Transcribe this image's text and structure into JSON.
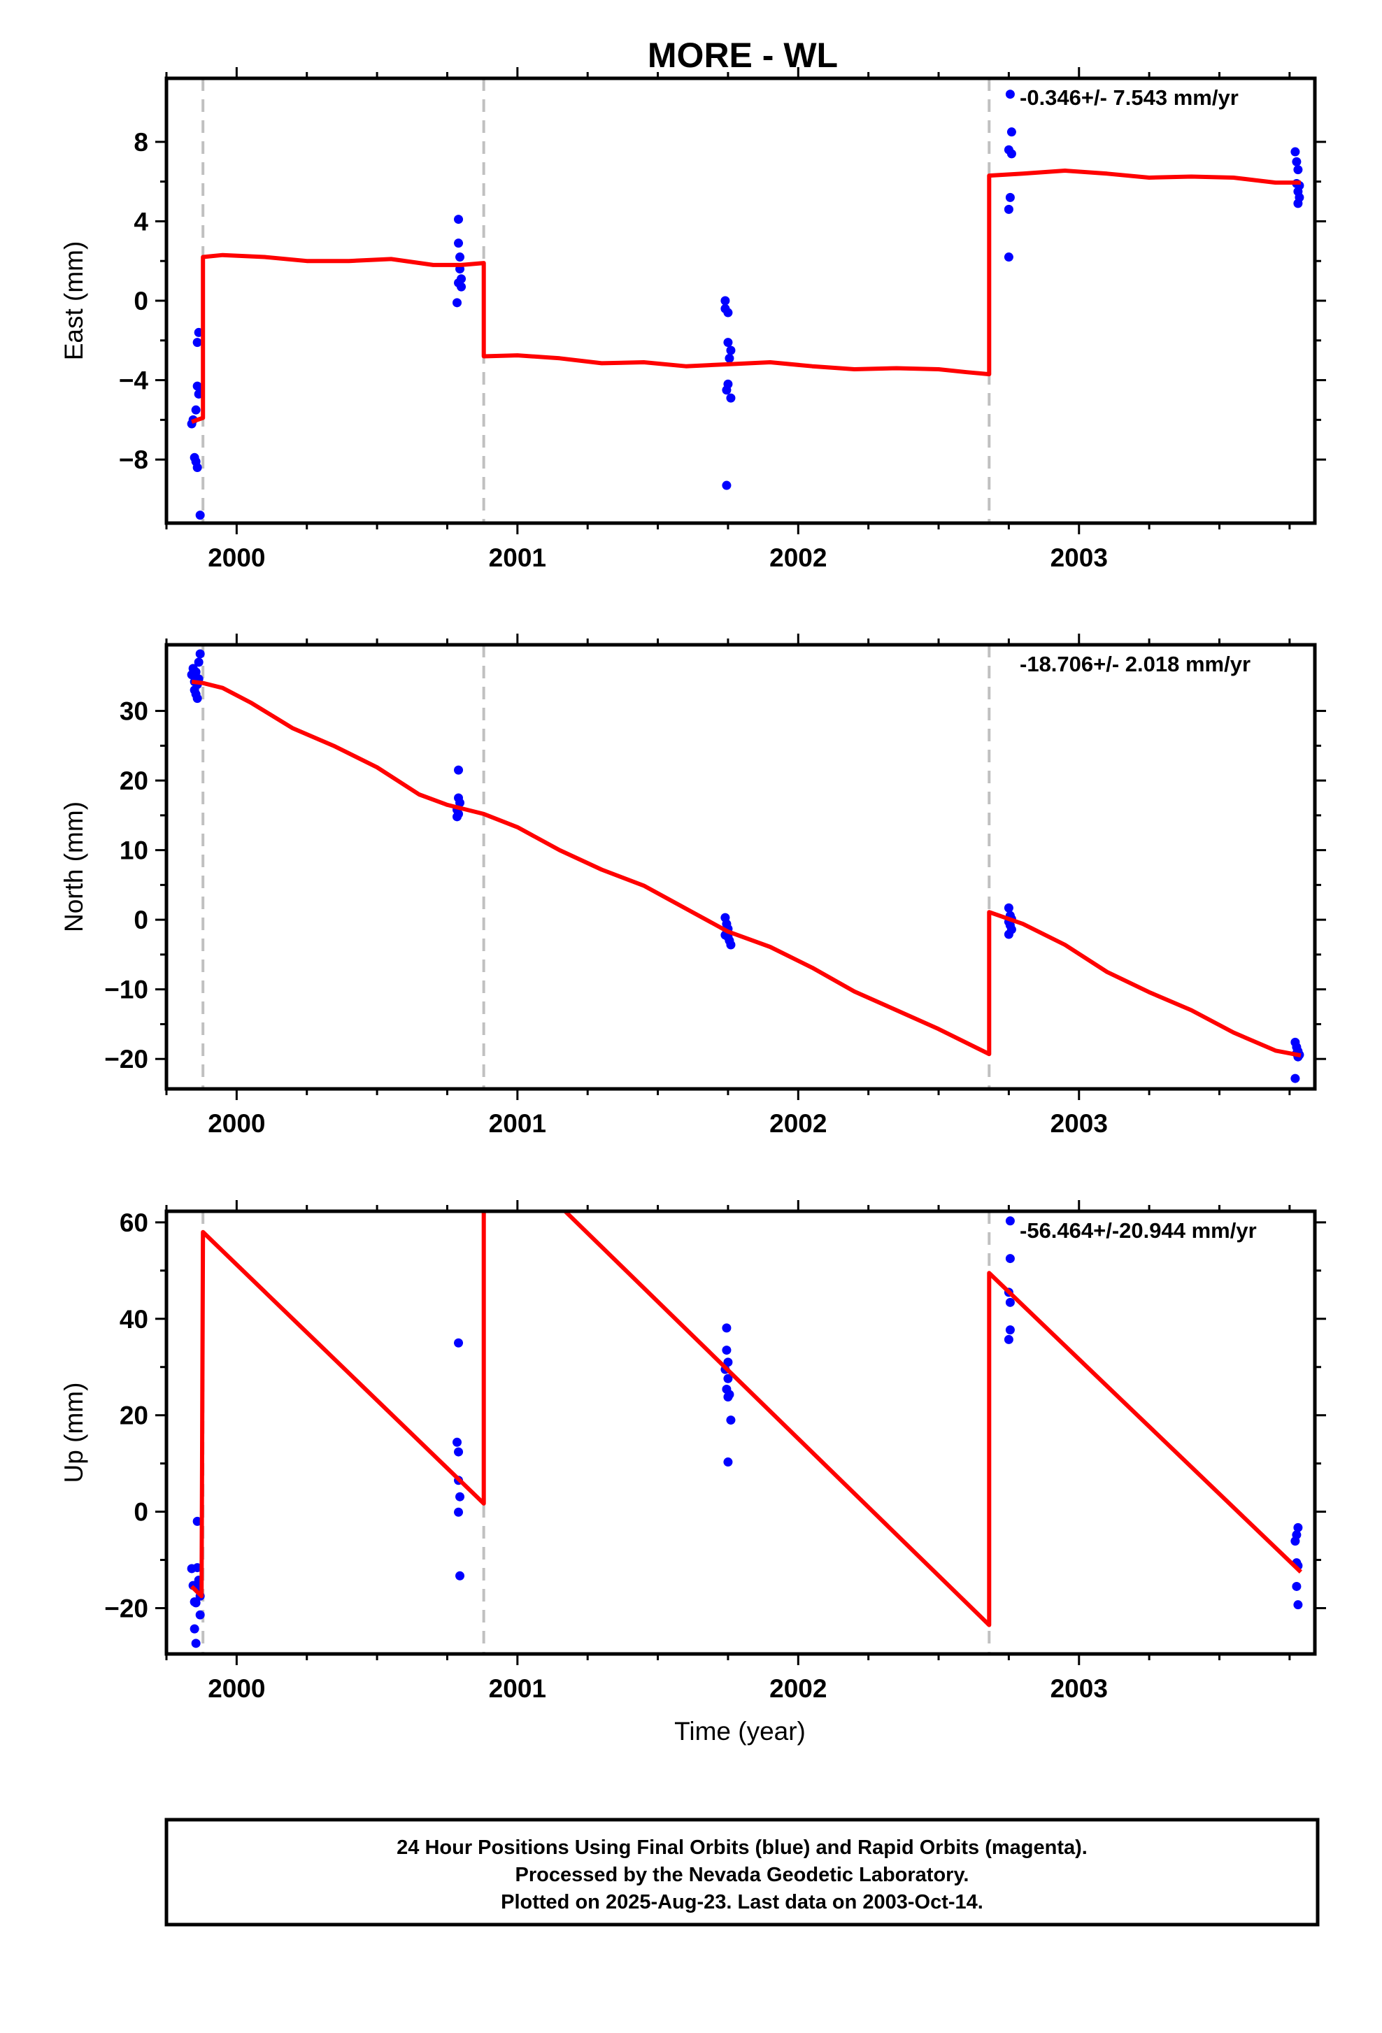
{
  "title": "MORE - WL",
  "colors": {
    "data_points": "#0000ff",
    "model_line": "#ff0000",
    "step_lines": "#c0c0c0",
    "frame": "#000000"
  },
  "xlabel": "Time (year)",
  "x_tick_labels": [
    "2000",
    "2001",
    "2002",
    "2003"
  ],
  "footer": {
    "line1": "24 Hour Positions Using Final Orbits (blue) and Rapid Orbits (magenta).",
    "line2": "Processed by the Nevada Geodetic Laboratory.",
    "line3": "Plotted on 2025-Aug-23. Last data on 2003-Oct-14."
  },
  "chart_data": [
    {
      "type": "scatter",
      "component": "east",
      "ylabel": "East (mm)",
      "rate_label": "-0.346+/- 7.543 mm/yr",
      "xlim": [
        1999.75,
        2003.84
      ],
      "ylim": [
        -11.2,
        11.2
      ],
      "grid": false,
      "y_ticks": [
        -8,
        -4,
        0,
        4,
        8
      ],
      "y_tick_labels": [
        "−8",
        "−4",
        "0",
        "4",
        "8"
      ],
      "x_ticks": [
        2000,
        2001,
        2002,
        2003
      ],
      "step_epochs": [
        1999.88,
        2000.88,
        2002.68
      ],
      "points": [
        [
          1999.84,
          -6.2
        ],
        [
          1999.845,
          -6.0
        ],
        [
          1999.85,
          -7.9
        ],
        [
          1999.855,
          -8.1
        ],
        [
          1999.86,
          -8.4
        ],
        [
          1999.855,
          -5.5
        ],
        [
          1999.86,
          -4.3
        ],
        [
          1999.865,
          -4.7
        ],
        [
          1999.87,
          -4.4
        ],
        [
          1999.86,
          -2.1
        ],
        [
          1999.865,
          -1.6
        ],
        [
          1999.87,
          -10.8
        ],
        [
          2000.79,
          4.1
        ],
        [
          2000.79,
          2.9
        ],
        [
          2000.795,
          2.2
        ],
        [
          2000.795,
          1.6
        ],
        [
          2000.8,
          1.1
        ],
        [
          2000.79,
          0.9
        ],
        [
          2000.8,
          0.7
        ],
        [
          2000.785,
          -0.1
        ],
        [
          2001.74,
          0.0
        ],
        [
          2001.74,
          -0.4
        ],
        [
          2001.75,
          -0.6
        ],
        [
          2001.75,
          -2.1
        ],
        [
          2001.76,
          -2.5
        ],
        [
          2001.755,
          -2.9
        ],
        [
          2001.75,
          -4.2
        ],
        [
          2001.745,
          -4.5
        ],
        [
          2001.76,
          -4.9
        ],
        [
          2001.745,
          -9.3
        ],
        [
          2002.755,
          10.4
        ],
        [
          2002.76,
          8.5
        ],
        [
          2002.75,
          7.6
        ],
        [
          2002.76,
          7.4
        ],
        [
          2002.755,
          5.2
        ],
        [
          2002.75,
          4.6
        ],
        [
          2002.75,
          2.2
        ],
        [
          2003.77,
          7.5
        ],
        [
          2003.775,
          7.0
        ],
        [
          2003.78,
          6.6
        ],
        [
          2003.775,
          5.9
        ],
        [
          2003.78,
          5.5
        ],
        [
          2003.785,
          5.2
        ],
        [
          2003.78,
          4.9
        ],
        [
          2003.785,
          5.8
        ]
      ],
      "model": [
        [
          1999.84,
          -6.1
        ],
        [
          1999.88,
          -5.9
        ],
        [
          1999.88,
          2.2
        ],
        [
          1999.95,
          2.3
        ],
        [
          2000.1,
          2.2
        ],
        [
          2000.25,
          2.0
        ],
        [
          2000.4,
          2.0
        ],
        [
          2000.55,
          2.1
        ],
        [
          2000.7,
          1.8
        ],
        [
          2000.8,
          1.8
        ],
        [
          2000.88,
          1.9
        ],
        [
          2000.88,
          -2.8
        ],
        [
          2001.0,
          -2.75
        ],
        [
          2001.15,
          -2.9
        ],
        [
          2001.3,
          -3.15
        ],
        [
          2001.45,
          -3.1
        ],
        [
          2001.6,
          -3.3
        ],
        [
          2001.75,
          -3.2
        ],
        [
          2001.9,
          -3.1
        ],
        [
          2002.05,
          -3.3
        ],
        [
          2002.2,
          -3.45
        ],
        [
          2002.35,
          -3.4
        ],
        [
          2002.5,
          -3.45
        ],
        [
          2002.6,
          -3.6
        ],
        [
          2002.68,
          -3.7
        ],
        [
          2002.68,
          6.3
        ],
        [
          2002.8,
          6.4
        ],
        [
          2002.95,
          6.55
        ],
        [
          2003.1,
          6.4
        ],
        [
          2003.25,
          6.2
        ],
        [
          2003.4,
          6.25
        ],
        [
          2003.55,
          6.2
        ],
        [
          2003.7,
          5.95
        ],
        [
          2003.79,
          5.95
        ]
      ]
    },
    {
      "type": "scatter",
      "component": "north",
      "ylabel": "North (mm)",
      "rate_label": "-18.706+/- 2.018 mm/yr",
      "xlim": [
        1999.75,
        2003.84
      ],
      "ylim": [
        -24.3,
        39.5
      ],
      "grid": false,
      "y_ticks": [
        -20,
        -10,
        0,
        10,
        20,
        30
      ],
      "y_tick_labels": [
        "−20",
        "−10",
        "0",
        "10",
        "20",
        "30"
      ],
      "x_ticks": [
        2000,
        2001,
        2002,
        2003
      ],
      "step_epochs": [
        1999.88,
        2000.88,
        2002.68
      ],
      "points": [
        [
          1999.84,
          35.2
        ],
        [
          1999.845,
          36.1
        ],
        [
          1999.85,
          34.2
        ],
        [
          1999.85,
          33.0
        ],
        [
          1999.855,
          32.4
        ],
        [
          1999.86,
          31.8
        ],
        [
          1999.86,
          33.8
        ],
        [
          1999.865,
          34.6
        ],
        [
          1999.865,
          37.0
        ],
        [
          1999.87,
          38.2
        ],
        [
          1999.855,
          35.6
        ],
        [
          2000.79,
          21.5
        ],
        [
          2000.79,
          17.5
        ],
        [
          2000.795,
          16.8
        ],
        [
          2000.785,
          15.8
        ],
        [
          2000.79,
          15.2
        ],
        [
          2000.785,
          14.8
        ],
        [
          2001.74,
          0.3
        ],
        [
          2001.745,
          -0.6
        ],
        [
          2001.75,
          -1.3
        ],
        [
          2001.745,
          -1.9
        ],
        [
          2001.75,
          -2.5
        ],
        [
          2001.755,
          -3.0
        ],
        [
          2001.76,
          -3.6
        ],
        [
          2001.74,
          -2.2
        ],
        [
          2002.75,
          1.7
        ],
        [
          2002.755,
          0.6
        ],
        [
          2002.76,
          0.1
        ],
        [
          2002.75,
          -0.3
        ],
        [
          2002.755,
          -0.8
        ],
        [
          2002.76,
          -1.4
        ],
        [
          2002.75,
          -2.1
        ],
        [
          2003.77,
          -17.6
        ],
        [
          2003.775,
          -18.3
        ],
        [
          2003.78,
          -18.9
        ],
        [
          2003.775,
          -19.2
        ],
        [
          2003.78,
          -19.7
        ],
        [
          2003.785,
          -19.4
        ],
        [
          2003.77,
          -22.8
        ]
      ],
      "model": [
        [
          1999.84,
          34.2
        ],
        [
          1999.88,
          34.0
        ],
        [
          1999.95,
          33.3
        ],
        [
          2000.05,
          31.2
        ],
        [
          2000.2,
          27.5
        ],
        [
          2000.35,
          24.9
        ],
        [
          2000.5,
          21.9
        ],
        [
          2000.65,
          18.0
        ],
        [
          2000.75,
          16.5
        ],
        [
          2000.88,
          15.2
        ],
        [
          2001.0,
          13.3
        ],
        [
          2001.15,
          10.0
        ],
        [
          2001.3,
          7.2
        ],
        [
          2001.45,
          4.9
        ],
        [
          2001.6,
          1.6
        ],
        [
          2001.75,
          -1.7
        ],
        [
          2001.9,
          -3.9
        ],
        [
          2002.05,
          -6.9
        ],
        [
          2002.2,
          -10.3
        ],
        [
          2002.35,
          -13.0
        ],
        [
          2002.5,
          -15.7
        ],
        [
          2002.68,
          -19.3
        ],
        [
          2002.68,
          1.1
        ],
        [
          2002.8,
          -0.6
        ],
        [
          2002.95,
          -3.6
        ],
        [
          2003.1,
          -7.5
        ],
        [
          2003.25,
          -10.4
        ],
        [
          2003.4,
          -13.0
        ],
        [
          2003.55,
          -16.2
        ],
        [
          2003.7,
          -18.8
        ],
        [
          2003.79,
          -19.5
        ]
      ]
    },
    {
      "type": "scatter",
      "component": "up",
      "ylabel": "Up (mm)",
      "rate_label": "-56.464+/-20.944 mm/yr",
      "xlim": [
        1999.75,
        2003.84
      ],
      "ylim": [
        -29.5,
        62.3
      ],
      "grid": false,
      "y_ticks": [
        -20,
        0,
        20,
        40,
        60
      ],
      "y_tick_labels": [
        "−20",
        "0",
        "20",
        "40",
        "60"
      ],
      "x_ticks": [
        2000,
        2001,
        2002,
        2003
      ],
      "step_epochs": [
        1999.88,
        2000.88,
        2002.68
      ],
      "points": [
        [
          1999.84,
          -11.8
        ],
        [
          1999.845,
          -15.3
        ],
        [
          1999.85,
          -18.7
        ],
        [
          1999.855,
          -18.9
        ],
        [
          1999.85,
          -24.3
        ],
        [
          1999.855,
          -27.3
        ],
        [
          1999.86,
          -11.6
        ],
        [
          1999.865,
          -14.2
        ],
        [
          1999.865,
          -16.0
        ],
        [
          1999.86,
          -2.0
        ],
        [
          1999.87,
          -21.4
        ],
        [
          1999.87,
          -17.5
        ],
        [
          2000.79,
          35.0
        ],
        [
          2000.785,
          14.4
        ],
        [
          2000.79,
          12.4
        ],
        [
          2000.79,
          6.5
        ],
        [
          2000.795,
          3.1
        ],
        [
          2000.79,
          -0.1
        ],
        [
          2000.795,
          -13.3
        ],
        [
          2001.745,
          38.1
        ],
        [
          2001.745,
          33.5
        ],
        [
          2001.75,
          31.0
        ],
        [
          2001.74,
          29.5
        ],
        [
          2001.75,
          27.6
        ],
        [
          2001.745,
          25.4
        ],
        [
          2001.755,
          24.3
        ],
        [
          2001.75,
          23.8
        ],
        [
          2001.76,
          19.0
        ],
        [
          2001.75,
          10.3
        ],
        [
          2002.755,
          60.3
        ],
        [
          2002.755,
          52.5
        ],
        [
          2002.75,
          45.5
        ],
        [
          2002.755,
          43.4
        ],
        [
          2002.755,
          37.7
        ],
        [
          2002.75,
          35.7
        ],
        [
          2003.77,
          -6.1
        ],
        [
          2003.775,
          -4.8
        ],
        [
          2003.78,
          -3.3
        ],
        [
          2003.775,
          -10.6
        ],
        [
          2003.78,
          -11.2
        ],
        [
          2003.775,
          -15.5
        ],
        [
          2003.78,
          -19.3
        ]
      ],
      "model": [
        [
          1999.84,
          -15.5
        ],
        [
          1999.875,
          -17.5
        ],
        [
          1999.88,
          58.0
        ],
        [
          2000.88,
          1.7
        ],
        [
          2000.88,
          62.3
        ]
      ],
      "model_segments": [
        [
          [
            1999.84,
            -15.5
          ],
          [
            1999.875,
            -17.5
          ],
          [
            1999.88,
            58.0
          ],
          [
            2000.88,
            1.7
          ],
          [
            2000.88,
            62.3
          ]
        ],
        [
          [
            2001.17,
            62.3
          ],
          [
            2002.68,
            -23.5
          ],
          [
            2002.68,
            49.5
          ],
          [
            2003.79,
            -12.5
          ]
        ]
      ]
    }
  ]
}
